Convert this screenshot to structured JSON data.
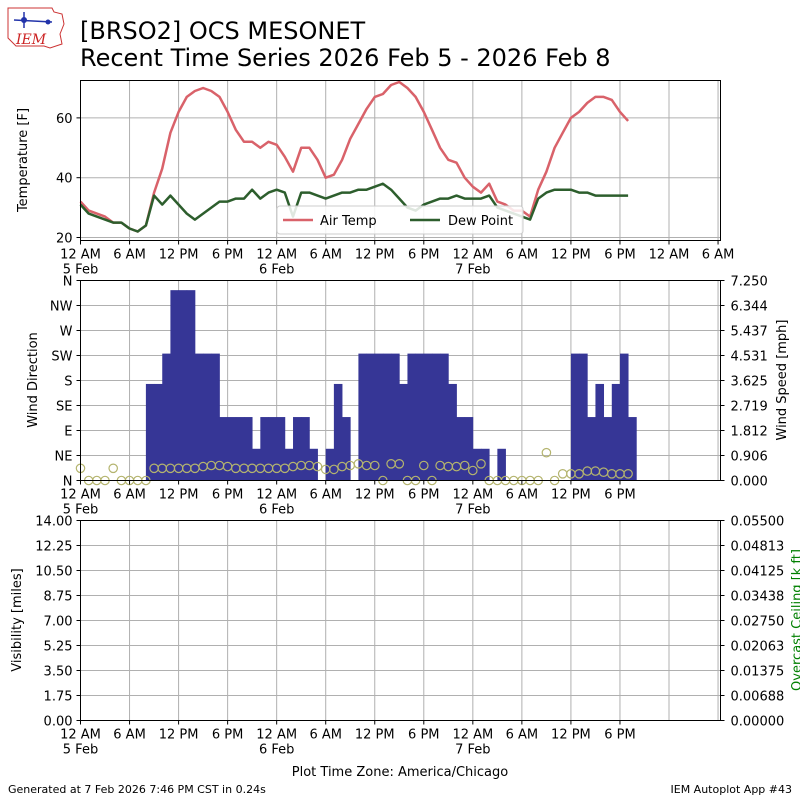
{
  "header": {
    "logo_text": "IEM",
    "title_line1": "[BRSO2] OCS MESONET",
    "title_line2": "Recent Time Series 2026 Feb 5 - 2026 Feb 8"
  },
  "footer": {
    "generated": "Generated at 7 Feb 2026 7:46 PM CST in 0.24s",
    "app": "IEM Autoplot App #43"
  },
  "colors": {
    "air_temp": "#d9626a",
    "dew_point": "#2d5e2d",
    "wind_bar": "#363696",
    "wind_dir_marker": "#b4b46e",
    "ceiling_label": "#008000",
    "grid": "#b0b0b0"
  },
  "chart_data": [
    {
      "type": "line",
      "name": "temperature",
      "ylabel": "Temperature [F]",
      "xlim_hours": [
        0,
        78.3
      ],
      "ylim": [
        19,
        72.5
      ],
      "yticks": [
        20,
        40,
        60
      ],
      "xtick_hours": [
        0,
        6,
        12,
        18,
        24,
        30,
        36,
        42,
        48,
        54,
        60,
        66,
        72,
        78
      ],
      "xtick_labels": [
        "12 AM",
        "6 AM",
        "12 PM",
        "6 PM",
        "12 AM",
        "6 AM",
        "12 PM",
        "6 PM",
        "12 AM",
        "6 AM",
        "12 PM",
        "6 PM",
        "12 AM",
        "6 AM"
      ],
      "xtick_labels_short": [
        "12 AM",
        "6 AM",
        "12 PM",
        "6 PM",
        "12 AM",
        "6 AM",
        "12 PM",
        "6 PM",
        "12 AM",
        "6 AM",
        "12 PM",
        "6 PM"
      ],
      "date_labels": [
        {
          "hour": 0,
          "text": "5 Feb"
        },
        {
          "hour": 24,
          "text": "6 Feb"
        },
        {
          "hour": 48,
          "text": "7 Feb"
        }
      ],
      "legend": {
        "placement": "lower-center",
        "entries": [
          "Air Temp",
          "Dew Point"
        ]
      },
      "series": [
        {
          "name": "Air Temp",
          "hours": [
            0,
            1,
            2,
            3,
            4,
            5,
            6,
            7,
            8,
            9,
            10,
            11,
            12,
            13,
            14,
            15,
            16,
            17,
            18,
            19,
            20,
            21,
            22,
            23,
            24,
            25,
            26,
            27,
            28,
            29,
            30,
            31,
            32,
            33,
            34,
            35,
            36,
            37,
            38,
            39,
            40,
            41,
            42,
            43,
            44,
            45,
            46,
            47,
            48,
            49,
            50,
            51,
            52,
            53,
            54,
            55,
            56,
            57,
            58,
            59,
            60,
            61,
            62,
            63,
            64,
            65,
            66,
            67
          ],
          "values": [
            32,
            29,
            28,
            27,
            25,
            25,
            23,
            22,
            24,
            35,
            43,
            55,
            62,
            67,
            69,
            70,
            69,
            67,
            62,
            56,
            52,
            52,
            50,
            52,
            51,
            47,
            42,
            50,
            50,
            46,
            40,
            41,
            46,
            53,
            58,
            63,
            67,
            68,
            71,
            72,
            70,
            67,
            62,
            56,
            50,
            46,
            45,
            40,
            37,
            35,
            38,
            32,
            31,
            29,
            29,
            27,
            36,
            42,
            50,
            55,
            60,
            62,
            65,
            67,
            67,
            66,
            62,
            59
          ]
        },
        {
          "name": "Dew Point",
          "hours": [
            0,
            1,
            2,
            3,
            4,
            5,
            6,
            7,
            8,
            9,
            10,
            11,
            12,
            13,
            14,
            15,
            16,
            17,
            18,
            19,
            20,
            21,
            22,
            23,
            24,
            25,
            26,
            27,
            28,
            29,
            30,
            31,
            32,
            33,
            34,
            35,
            36,
            37,
            38,
            39,
            40,
            41,
            42,
            43,
            44,
            45,
            46,
            47,
            48,
            49,
            50,
            51,
            52,
            53,
            54,
            55,
            56,
            57,
            58,
            59,
            60,
            61,
            62,
            63,
            64,
            65,
            66,
            67
          ],
          "values": [
            31,
            28,
            27,
            26,
            25,
            25,
            23,
            22,
            24,
            34,
            31,
            34,
            31,
            28,
            26,
            28,
            30,
            32,
            32,
            33,
            33,
            36,
            33,
            35,
            36,
            35,
            27,
            35,
            35,
            34,
            33,
            34,
            35,
            35,
            36,
            36,
            37,
            38,
            36,
            33,
            30,
            29,
            31,
            32,
            33,
            33,
            34,
            33,
            33,
            33,
            34,
            30,
            29,
            28,
            27,
            26,
            33,
            35,
            36,
            36,
            36,
            35,
            35,
            34,
            34,
            34,
            34,
            34
          ]
        }
      ]
    },
    {
      "type": "bar",
      "name": "wind",
      "ylabel_left": "Wind Direction",
      "ylabel_right": "Wind Speed [mph]",
      "direction_ticks": [
        "N",
        "NE",
        "E",
        "SE",
        "S",
        "SW",
        "W",
        "NW",
        "N"
      ],
      "speed_ticks": [
        "0.000",
        "0.906",
        "1.812",
        "2.719",
        "3.625",
        "4.531",
        "5.437",
        "6.344",
        "7.250"
      ],
      "speed_ylim": [
        0,
        7.25
      ],
      "direction_ylim": [
        0,
        360
      ],
      "bar_width_hours": 1,
      "bars": {
        "hours": [
          8.5,
          9.5,
          10.5,
          11.5,
          12.5,
          13.5,
          14.5,
          15.5,
          16.5,
          17.5,
          18.5,
          19.5,
          20.5,
          21.5,
          22.5,
          23.5,
          24.5,
          25.5,
          26.5,
          27.5,
          28.5,
          29.5,
          30.5,
          31.5,
          32.5,
          33.5,
          34.5,
          35.5,
          36.5,
          37.5,
          38.5,
          39.5,
          40.5,
          41.5,
          42.5,
          43.5,
          44.5,
          45.5,
          46.5,
          47.5,
          48.5,
          49.5,
          50.5,
          51.5,
          52.5,
          53.5,
          54.5,
          55.5,
          56.5,
          57.5,
          58.5,
          59.5,
          60.5,
          61.5,
          62.5,
          63.5,
          64.5,
          65.5,
          66.5,
          67.5
        ],
        "speeds": [
          3.5,
          3.5,
          4.6,
          6.9,
          6.9,
          6.9,
          4.6,
          4.6,
          4.6,
          2.3,
          2.3,
          2.3,
          2.3,
          1.15,
          2.3,
          2.3,
          2.3,
          1.15,
          2.3,
          2.3,
          1.15,
          0,
          1.15,
          3.5,
          2.3,
          0,
          4.6,
          4.6,
          4.6,
          4.6,
          4.6,
          3.5,
          4.6,
          4.6,
          4.6,
          4.6,
          4.6,
          3.5,
          2.3,
          2.3,
          1.15,
          1.15,
          0,
          1.15,
          0,
          0,
          0,
          0,
          0,
          0,
          0,
          0,
          4.6,
          4.6,
          2.3,
          3.5,
          2.3,
          3.5,
          4.6,
          2.3
        ]
      },
      "direction_markers": {
        "hours": [
          0,
          1,
          2,
          3,
          4,
          5,
          6,
          7,
          8,
          9,
          10,
          11,
          12,
          13,
          14,
          15,
          16,
          17,
          18,
          19,
          20,
          21,
          22,
          23,
          24,
          25,
          26,
          27,
          28,
          29,
          30,
          31,
          32,
          33,
          34,
          35,
          36,
          37,
          38,
          39,
          40,
          41,
          42,
          43,
          44,
          45,
          46,
          47,
          48,
          49,
          50,
          51,
          52,
          53,
          54,
          55,
          56,
          57,
          58,
          59,
          60,
          61,
          62,
          63,
          64,
          65,
          66,
          67
        ],
        "degrees": [
          22,
          0,
          0,
          0,
          22,
          0,
          0,
          0,
          0,
          22,
          22,
          22,
          22,
          22,
          22,
          25,
          27,
          27,
          25,
          22,
          22,
          22,
          22,
          22,
          22,
          22,
          25,
          27,
          27,
          25,
          20,
          20,
          25,
          27,
          30,
          27,
          27,
          0,
          30,
          30,
          0,
          0,
          27,
          0,
          27,
          25,
          25,
          27,
          18,
          30,
          0,
          0,
          0,
          0,
          0,
          0,
          0,
          50,
          0,
          12,
          12,
          12,
          17,
          17,
          15,
          12,
          12,
          12
        ]
      }
    },
    {
      "type": "line",
      "name": "visibility",
      "ylabel_left": "Visibility [miles]",
      "ylabel_right": "Overcast Ceiling [k ft]",
      "left_ticks": [
        "0.00",
        "1.75",
        "3.50",
        "5.25",
        "7.00",
        "8.75",
        "10.50",
        "12.25",
        "14.00"
      ],
      "right_ticks": [
        "0.00000",
        "0.00688",
        "0.01375",
        "0.02063",
        "0.02750",
        "0.03438",
        "0.04125",
        "0.04813",
        "0.05500"
      ],
      "ylim": [
        0,
        14
      ],
      "right_ylim": [
        0,
        0.055
      ],
      "xlabel": "Plot Time Zone: America/Chicago",
      "series": []
    }
  ]
}
